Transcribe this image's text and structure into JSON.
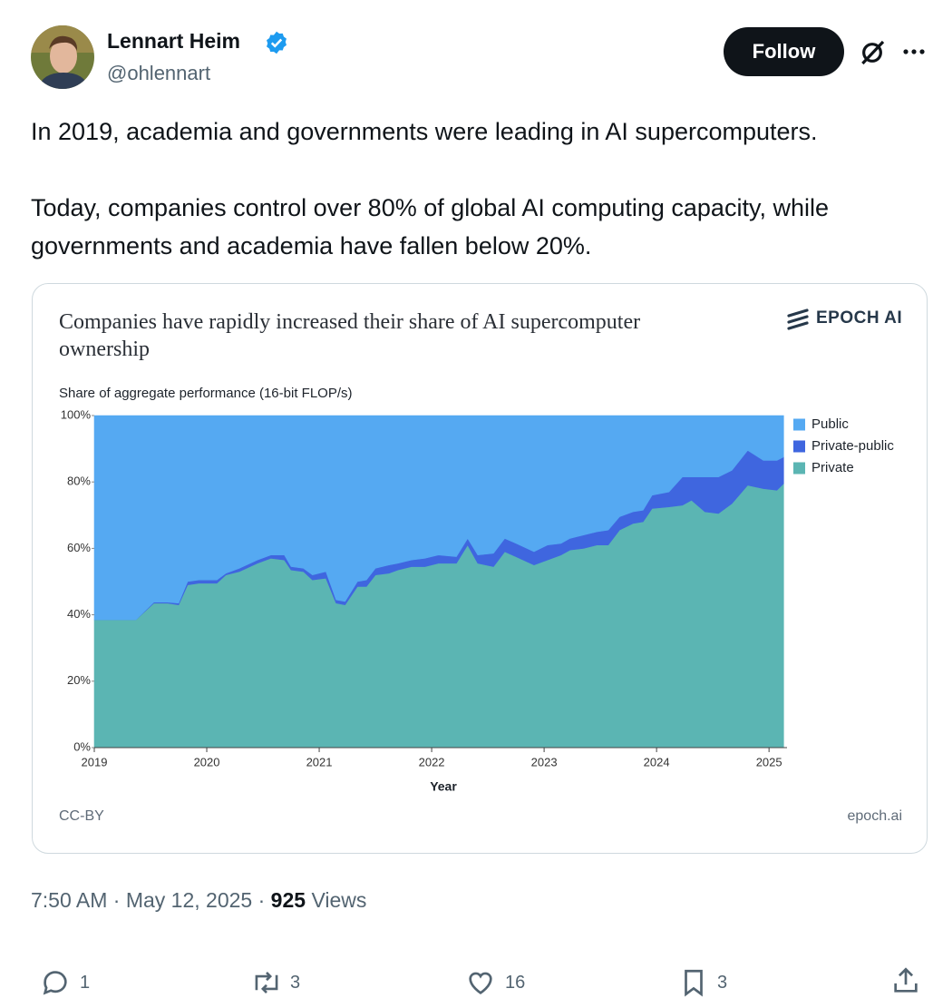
{
  "author": {
    "name": "Lennart Heim",
    "handle": "@ohlennart",
    "follow": "Follow"
  },
  "tweet": {
    "paragraphs": [
      "In 2019, academia and governments were leading in AI supercomputers.",
      "Today, companies control over 80% of global AI computing capacity, while governments and academia have fallen below 20%."
    ]
  },
  "chart_data": {
    "type": "area",
    "stacked": true,
    "title": "Companies have rapidly increased their share of AI supercomputer ownership",
    "brand": "EPOCH AI",
    "license": "CC-BY",
    "source": "epoch.ai",
    "ylabel": "Share of aggregate performance (16-bit FLOP/s)",
    "xlabel": "Year",
    "legend": "right",
    "x": [
      2019.0,
      2019.37,
      2019.53,
      2019.65,
      2019.75,
      2019.83,
      2019.93,
      2020.09,
      2020.17,
      2020.29,
      2020.45,
      2020.57,
      2020.69,
      2020.75,
      2020.86,
      2020.94,
      2021.06,
      2021.15,
      2021.23,
      2021.34,
      2021.42,
      2021.5,
      2021.62,
      2021.7,
      2021.82,
      2021.94,
      2022.06,
      2022.22,
      2022.32,
      2022.41,
      2022.55,
      2022.65,
      2022.75,
      2022.91,
      2023.03,
      2023.15,
      2023.23,
      2023.35,
      2023.47,
      2023.57,
      2023.67,
      2023.79,
      2023.88,
      2023.96,
      2024.11,
      2024.23,
      2024.31,
      2024.43,
      2024.55,
      2024.67,
      2024.81,
      2024.95,
      2025.07,
      2025.13
    ],
    "series": [
      {
        "name": "Public",
        "color": "#55a9f2",
        "values": [
          61.5,
          61.5,
          56.2,
          56.2,
          56.5,
          50,
          49.5,
          49.5,
          47.5,
          46,
          43.5,
          42,
          42,
          45.5,
          46,
          48,
          47,
          55.5,
          56,
          50,
          49.5,
          46,
          45,
          44.5,
          43.5,
          43,
          42,
          42.5,
          37,
          42,
          41.5,
          37,
          38.5,
          41,
          39,
          38.5,
          37,
          36,
          35,
          34.5,
          30.5,
          29,
          28.5,
          24,
          23,
          18.5,
          18.5,
          18.5,
          18.5,
          16.5,
          10.5,
          13.5,
          13.5,
          12.5
        ]
      },
      {
        "name": "Private-public",
        "color": "#3f66df",
        "values": [
          0,
          0,
          0.3,
          0.3,
          0.5,
          1,
          1,
          1,
          0.5,
          1,
          1,
          1,
          1.5,
          1,
          1,
          1.5,
          2,
          1,
          1,
          1.5,
          2,
          2,
          2.5,
          2,
          2,
          2.5,
          2.5,
          2,
          2,
          2.5,
          4,
          4,
          4,
          4,
          4.5,
          3.5,
          3.5,
          4,
          4,
          4.5,
          4,
          3.5,
          3.5,
          4,
          4.5,
          8.5,
          7,
          10.5,
          11,
          10,
          10.5,
          8.5,
          9,
          8
        ]
      },
      {
        "name": "Private",
        "color": "#5bb5b3",
        "values": [
          38.5,
          38.5,
          43.5,
          43.5,
          43,
          49,
          49.5,
          49.5,
          52,
          53,
          55.5,
          57,
          56.5,
          53.5,
          53,
          50.5,
          51,
          43.5,
          43,
          48.5,
          48.5,
          52,
          52.5,
          53.5,
          54.5,
          54.5,
          55.5,
          55.5,
          61,
          55.5,
          54.5,
          59,
          57.5,
          55,
          56.5,
          58,
          59.5,
          60,
          61,
          61,
          65.5,
          67.5,
          68,
          72,
          72.5,
          73,
          74.5,
          71,
          70.5,
          73.5,
          79,
          78,
          77.5,
          79.5
        ]
      }
    ],
    "xlim": [
      2019,
      2025.16
    ],
    "xticks": [
      2019,
      2020,
      2021,
      2022,
      2023,
      2024,
      2025
    ],
    "ylim": [
      0,
      100
    ],
    "yticks": [
      {
        "value": 0,
        "label": "0%"
      },
      {
        "value": 20,
        "label": "20%"
      },
      {
        "value": 40,
        "label": "40%"
      },
      {
        "value": 60,
        "label": "60%"
      },
      {
        "value": 80,
        "label": "80%"
      },
      {
        "value": 100,
        "label": "100%"
      }
    ]
  },
  "meta": {
    "time": "7:50 AM",
    "separator": "·",
    "date": "May 12, 2025",
    "views": 925,
    "views_label": "Views"
  },
  "actions": {
    "replies": 1,
    "reposts": 3,
    "likes": 16,
    "bookmarks": 3
  }
}
